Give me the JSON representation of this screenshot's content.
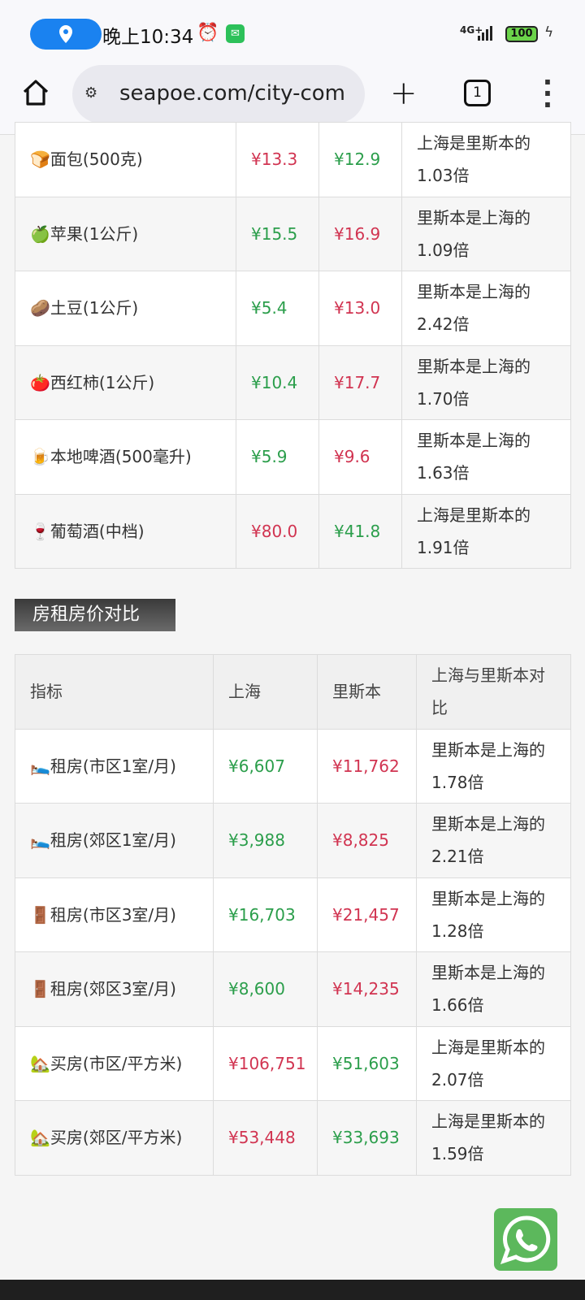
{
  "status_bar": {
    "time": "晚上10:34",
    "network": "4G+",
    "battery": "100",
    "icons": [
      "location-icon",
      "alarm-icon",
      "wechat-icon",
      "signal-icon",
      "battery-icon",
      "charging-icon"
    ]
  },
  "browser": {
    "url": "seapoe.com/city-com",
    "tab_count": "1"
  },
  "food_table": {
    "rows": [
      {
        "item": "🍞面包(500克)",
        "shanghai": "¥13.3",
        "lisbon": "¥12.9",
        "compare": "上海是里斯本的1.03倍",
        "sh_color": "red",
        "lis_color": "green"
      },
      {
        "item": "🍏苹果(1公斤)",
        "shanghai": "¥15.5",
        "lisbon": "¥16.9",
        "compare": "里斯本是上海的1.09倍",
        "sh_color": "green",
        "lis_color": "red"
      },
      {
        "item": "🥔土豆(1公斤)",
        "shanghai": "¥5.4",
        "lisbon": "¥13.0",
        "compare": "里斯本是上海的2.42倍",
        "sh_color": "green",
        "lis_color": "red"
      },
      {
        "item": "🍅西红柿(1公斤)",
        "shanghai": "¥10.4",
        "lisbon": "¥17.7",
        "compare": "里斯本是上海的1.70倍",
        "sh_color": "green",
        "lis_color": "red"
      },
      {
        "item": "🍺本地啤酒(500毫升)",
        "shanghai": "¥5.9",
        "lisbon": "¥9.6",
        "compare": "里斯本是上海的1.63倍",
        "sh_color": "green",
        "lis_color": "red"
      },
      {
        "item": "🍷葡萄酒(中档)",
        "shanghai": "¥80.0",
        "lisbon": "¥41.8",
        "compare": "上海是里斯本的1.91倍",
        "sh_color": "red",
        "lis_color": "green"
      }
    ]
  },
  "housing_section": {
    "title": "房租房价对比"
  },
  "housing_table": {
    "headers": [
      "指标",
      "上海",
      "里斯本",
      "上海与里斯本对比"
    ],
    "rows": [
      {
        "item": "🛌租房(市区1室/月)",
        "shanghai": "¥6,607",
        "lisbon": "¥11,762",
        "compare": "里斯本是上海的1.78倍",
        "sh_color": "green",
        "lis_color": "red"
      },
      {
        "item": "🛌租房(郊区1室/月)",
        "shanghai": "¥3,988",
        "lisbon": "¥8,825",
        "compare": "里斯本是上海的2.21倍",
        "sh_color": "green",
        "lis_color": "red"
      },
      {
        "item": "🚪租房(市区3室/月)",
        "shanghai": "¥16,703",
        "lisbon": "¥21,457",
        "compare": "里斯本是上海的1.28倍",
        "sh_color": "green",
        "lis_color": "red"
      },
      {
        "item": "🚪租房(郊区3室/月)",
        "shanghai": "¥8,600",
        "lisbon": "¥14,235",
        "compare": "里斯本是上海的1.66倍",
        "sh_color": "green",
        "lis_color": "red"
      },
      {
        "item": "🏡买房(市区/平方米)",
        "shanghai": "¥106,751",
        "lisbon": "¥51,603",
        "compare": "上海是里斯本的2.07倍",
        "sh_color": "red",
        "lis_color": "green"
      },
      {
        "item": "🏡买房(郊区/平方米)",
        "shanghai": "¥53,448",
        "lisbon": "¥33,693",
        "compare": "上海是里斯本的1.59倍",
        "sh_color": "red",
        "lis_color": "green"
      }
    ]
  },
  "colors": {
    "higher": "#d13451",
    "lower": "#2b9e4b"
  }
}
